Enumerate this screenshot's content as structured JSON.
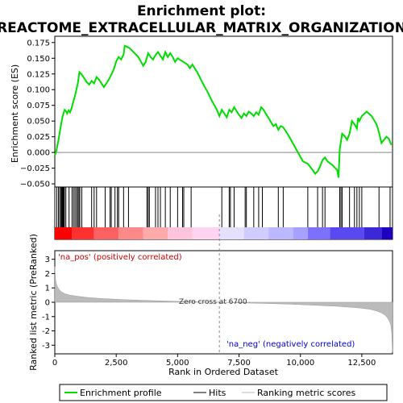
{
  "title_line1": "Enrichment plot:",
  "title_line2": "REACTOME_EXTRACELLULAR_MATRIX_ORGANIZATION",
  "chart_data": {
    "type": "line",
    "es_panel": {
      "ylabel": "Enrichment score (ES)",
      "ylim": [
        -0.055,
        0.185
      ],
      "yticks": [
        -0.05,
        -0.025,
        0.0,
        0.025,
        0.05,
        0.075,
        0.1,
        0.125,
        0.15,
        0.175
      ],
      "ytick_labels": [
        "−0.050",
        "−0.025",
        "0.000",
        "0.025",
        "0.050",
        "0.075",
        "0.100",
        "0.125",
        "0.150",
        "0.175"
      ],
      "profile_x": [
        0,
        60,
        100,
        150,
        200,
        260,
        320,
        400,
        450,
        500,
        560,
        620,
        680,
        720,
        760,
        820,
        880,
        940,
        1000,
        1100,
        1200,
        1300,
        1400,
        1500,
        1600,
        1700,
        1800,
        1900,
        2000,
        2100,
        2200,
        2300,
        2350,
        2400,
        2500,
        2600,
        2700,
        2800,
        2850,
        2950,
        3050,
        3200,
        3400,
        3600,
        3700,
        3800,
        3900,
        4000,
        4100,
        4200,
        4300,
        4400,
        4500,
        4600,
        4700,
        4800,
        4900,
        5000,
        5200,
        5400,
        5500,
        5600,
        5800,
        6000,
        6200,
        6400,
        6600,
        6700,
        6800,
        6900,
        7000,
        7100,
        7200,
        7300,
        7400,
        7500,
        7600,
        7700,
        7800,
        7900,
        8000,
        8100,
        8200,
        8300,
        8400,
        8500,
        8700,
        8900,
        9000,
        9100,
        9200,
        9300,
        9500,
        9700,
        9900,
        10100,
        10300,
        10500,
        10600,
        10700,
        10800,
        10900,
        11000,
        11100,
        11300,
        11500,
        11550,
        11600,
        11700,
        11800,
        11900,
        12000,
        12100,
        12200,
        12300,
        12350,
        12400,
        12500,
        12700,
        12900,
        13100,
        13200,
        13300,
        13500,
        13600,
        13700
      ],
      "profile_y": [
        -0.005,
        0.002,
        0.01,
        0.02,
        0.032,
        0.045,
        0.058,
        0.068,
        0.066,
        0.062,
        0.067,
        0.064,
        0.07,
        0.076,
        0.082,
        0.09,
        0.1,
        0.11,
        0.128,
        0.124,
        0.118,
        0.112,
        0.108,
        0.114,
        0.11,
        0.12,
        0.116,
        0.11,
        0.104,
        0.11,
        0.116,
        0.124,
        0.128,
        0.132,
        0.145,
        0.152,
        0.148,
        0.156,
        0.17,
        0.168,
        0.166,
        0.16,
        0.152,
        0.138,
        0.144,
        0.158,
        0.152,
        0.148,
        0.155,
        0.16,
        0.154,
        0.148,
        0.16,
        0.152,
        0.158,
        0.152,
        0.144,
        0.15,
        0.145,
        0.14,
        0.134,
        0.14,
        0.128,
        0.112,
        0.098,
        0.082,
        0.068,
        0.058,
        0.068,
        0.062,
        0.056,
        0.068,
        0.064,
        0.072,
        0.066,
        0.06,
        0.055,
        0.062,
        0.058,
        0.065,
        0.062,
        0.058,
        0.064,
        0.06,
        0.072,
        0.068,
        0.055,
        0.042,
        0.045,
        0.036,
        0.042,
        0.04,
        0.028,
        0.014,
        0.0,
        -0.014,
        -0.018,
        -0.028,
        -0.034,
        -0.03,
        -0.022,
        -0.012,
        -0.008,
        -0.014,
        -0.02,
        -0.028,
        -0.04,
        0.005,
        0.03,
        0.026,
        0.02,
        0.03,
        0.05,
        0.045,
        0.038,
        0.055,
        0.05,
        0.058,
        0.065,
        0.058,
        0.045,
        0.032,
        0.015,
        0.025,
        0.022,
        0.012,
        0.005,
        0.0
      ]
    },
    "hits": [
      80,
      150,
      200,
      250,
      270,
      300,
      320,
      340,
      360,
      390,
      450,
      580,
      700,
      760,
      820,
      880,
      930,
      980,
      1020,
      1100,
      1500,
      1600,
      1700,
      2050,
      2250,
      2300,
      2450,
      2550,
      2600,
      2800,
      3000,
      3750,
      3800,
      3850,
      4100,
      4200,
      4300,
      4500,
      4700,
      5000,
      5200,
      5250,
      5550,
      6800,
      7100,
      7150,
      7300,
      7750,
      7800,
      8100,
      8300,
      8450,
      9100,
      9300,
      10300,
      10700,
      10900,
      11000,
      11600,
      11650,
      11700,
      12000,
      12200,
      12300,
      12400,
      12500,
      13200,
      13650
    ],
    "bar_segments": [
      {
        "from": 0,
        "to": 700,
        "color": "#ff0000"
      },
      {
        "from": 700,
        "to": 1600,
        "color": "#ff3030"
      },
      {
        "from": 1600,
        "to": 2600,
        "color": "#ff6060"
      },
      {
        "from": 2600,
        "to": 3600,
        "color": "#ff8888"
      },
      {
        "from": 3600,
        "to": 4600,
        "color": "#ffaaaa"
      },
      {
        "from": 4600,
        "to": 5600,
        "color": "#ffc4dc"
      },
      {
        "from": 5600,
        "to": 6700,
        "color": "#ffd4f0"
      },
      {
        "from": 6700,
        "to": 7700,
        "color": "#e6e0ff"
      },
      {
        "from": 7700,
        "to": 8700,
        "color": "#d0ccff"
      },
      {
        "from": 8700,
        "to": 9700,
        "color": "#bcb8ff"
      },
      {
        "from": 9700,
        "to": 10300,
        "color": "#a8a0ff"
      },
      {
        "from": 10300,
        "to": 11200,
        "color": "#7c70ff"
      },
      {
        "from": 11200,
        "to": 12600,
        "color": "#5a48f0"
      },
      {
        "from": 12600,
        "to": 13300,
        "color": "#3c28d8"
      },
      {
        "from": 13300,
        "to": 13750,
        "color": "#1e00c0"
      }
    ],
    "rank_panel": {
      "ylabel": "Ranked list metric (PreRanked)",
      "ylim": [
        -3.6,
        3.6
      ],
      "yticks": [
        -3,
        -2,
        -1,
        0,
        1,
        2,
        3
      ],
      "ytick_labels": [
        "-3",
        "-2",
        "-1",
        "0",
        "1",
        "2",
        "3"
      ],
      "metric_x": [
        0,
        30,
        80,
        150,
        250,
        400,
        600,
        900,
        1300,
        2000,
        3000,
        4000,
        5000,
        6000,
        6700,
        7500,
        8500,
        9500,
        10500,
        11500,
        12300,
        12800,
        13100,
        13300,
        13450,
        13550,
        13620,
        13680,
        13720,
        13750
      ],
      "metric_y": [
        2.5,
        1.6,
        1.2,
        0.95,
        0.75,
        0.6,
        0.5,
        0.42,
        0.34,
        0.25,
        0.17,
        0.11,
        0.06,
        0.02,
        0.0,
        -0.04,
        -0.08,
        -0.13,
        -0.2,
        -0.28,
        -0.38,
        -0.48,
        -0.6,
        -0.75,
        -0.9,
        -1.1,
        -1.3,
        -1.6,
        -2.2,
        -3.5
      ],
      "zero_cross": 6700,
      "pos_label": "'na_pos' (positively correlated)",
      "neg_label": "'na_neg' (negatively correlated)",
      "zero_label": "Zero cross at 6700"
    },
    "xlabel": "Rank in Ordered Dataset",
    "xlim": [
      0,
      13750
    ],
    "xticks": [
      0,
      2500,
      5000,
      7500,
      10000,
      12500
    ],
    "xtick_labels": [
      "0",
      "2,500",
      "5,000",
      "7,500",
      "10,000",
      "12,500"
    ],
    "legend": [
      "Enrichment profile",
      "Hits",
      "Ranking metric scores"
    ],
    "colors": {
      "profile": "#00dd00",
      "hits": "#000000",
      "metric": "#bbbbbb",
      "zero_line": "#888888"
    }
  }
}
